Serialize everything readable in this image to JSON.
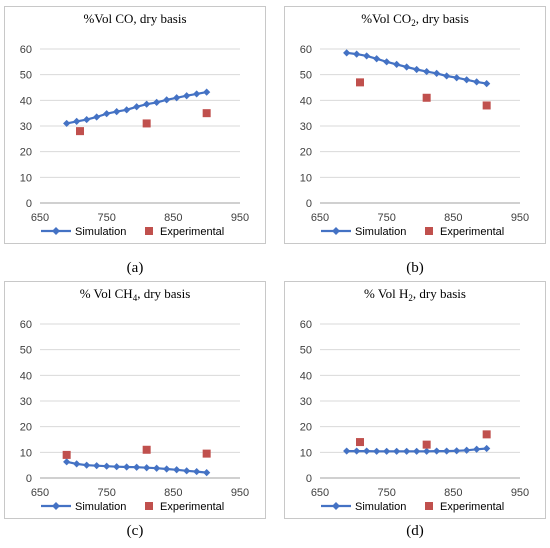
{
  "chart_data": [
    {
      "type": "scatter",
      "title": "%Vol CO, dry basis",
      "title_main": "%Vol CO, dry basis",
      "title_sub": "",
      "title_rest": "",
      "caption": "(a)",
      "xlim": [
        650,
        950
      ],
      "ylim": [
        0,
        60
      ],
      "xticks": [
        "650",
        "750",
        "850",
        "950"
      ],
      "yticks": [
        "0",
        "10",
        "20",
        "30",
        "40",
        "50",
        "60"
      ],
      "legend": "bottom",
      "series": [
        {
          "name": "Simulation",
          "style": "line-diamond",
          "color": "#4472c4",
          "x": [
            690,
            705,
            720,
            735,
            750,
            765,
            780,
            795,
            810,
            825,
            840,
            855,
            870,
            885,
            900
          ],
          "y": [
            31,
            31.8,
            32.5,
            33.5,
            34.8,
            35.6,
            36.3,
            37.5,
            38.5,
            39.2,
            40.2,
            41,
            41.8,
            42.5,
            43.2
          ]
        },
        {
          "name": "Experimental",
          "style": "square",
          "color": "#c0504d",
          "x": [
            710,
            810,
            900
          ],
          "y": [
            28,
            31,
            35
          ]
        }
      ]
    },
    {
      "type": "scatter",
      "title": "%Vol CO2, dry basis",
      "title_main": "%Vol CO",
      "title_sub": "2",
      "title_rest": ", dry basis",
      "caption": "(b)",
      "xlim": [
        650,
        950
      ],
      "ylim": [
        0,
        60
      ],
      "xticks": [
        "650",
        "750",
        "850",
        "950"
      ],
      "yticks": [
        "0",
        "10",
        "20",
        "30",
        "40",
        "50",
        "60"
      ],
      "legend": "bottom",
      "series": [
        {
          "name": "Simulation",
          "style": "line-diamond",
          "color": "#4472c4",
          "x": [
            690,
            705,
            720,
            735,
            750,
            765,
            780,
            795,
            810,
            825,
            840,
            855,
            870,
            885,
            900
          ],
          "y": [
            58.5,
            58,
            57.3,
            56.2,
            55,
            54,
            53,
            52,
            51.2,
            50.5,
            49.5,
            48.8,
            48,
            47.2,
            46.5
          ]
        },
        {
          "name": "Experimental",
          "style": "square",
          "color": "#c0504d",
          "x": [
            710,
            810,
            900
          ],
          "y": [
            47,
            41,
            38
          ]
        }
      ]
    },
    {
      "type": "scatter",
      "title": "% Vol CH4, dry basis",
      "title_main": "% Vol CH",
      "title_sub": "4",
      "title_rest": ", dry basis",
      "caption": "(c)",
      "xlim": [
        650,
        950
      ],
      "ylim": [
        0,
        60
      ],
      "xticks": [
        "650",
        "750",
        "850",
        "950"
      ],
      "yticks": [
        "0",
        "10",
        "20",
        "30",
        "40",
        "50",
        "60"
      ],
      "legend": "bottom",
      "series": [
        {
          "name": "Simulation",
          "style": "line-diamond",
          "color": "#4472c4",
          "x": [
            690,
            705,
            720,
            735,
            750,
            765,
            780,
            795,
            810,
            825,
            840,
            855,
            870,
            885,
            900
          ],
          "y": [
            6.3,
            5.5,
            5,
            4.8,
            4.6,
            4.4,
            4.3,
            4.2,
            4,
            3.8,
            3.5,
            3.2,
            2.8,
            2.5,
            2.1
          ]
        },
        {
          "name": "Experimental",
          "style": "square",
          "color": "#c0504d",
          "x": [
            690,
            810,
            900
          ],
          "y": [
            9,
            11,
            9.5
          ]
        }
      ]
    },
    {
      "type": "scatter",
      "title": "% Vol H2, dry basis",
      "title_main": "% Vol H",
      "title_sub": "2",
      "title_rest": ", dry basis",
      "caption": "(d)",
      "xlim": [
        650,
        950
      ],
      "ylim": [
        0,
        60
      ],
      "xticks": [
        "650",
        "750",
        "850",
        "950"
      ],
      "yticks": [
        "0",
        "10",
        "20",
        "30",
        "40",
        "50",
        "60"
      ],
      "legend": "bottom",
      "series": [
        {
          "name": "Simulation",
          "style": "line-diamond",
          "color": "#4472c4",
          "x": [
            690,
            705,
            720,
            735,
            750,
            765,
            780,
            795,
            810,
            825,
            840,
            855,
            870,
            885,
            900
          ],
          "y": [
            10.5,
            10.5,
            10.5,
            10.4,
            10.4,
            10.4,
            10.4,
            10.4,
            10.4,
            10.5,
            10.5,
            10.6,
            10.8,
            11.2,
            11.5
          ]
        },
        {
          "name": "Experimental",
          "style": "square",
          "color": "#c0504d",
          "x": [
            710,
            810,
            900
          ],
          "y": [
            14,
            13,
            17
          ]
        }
      ]
    }
  ]
}
